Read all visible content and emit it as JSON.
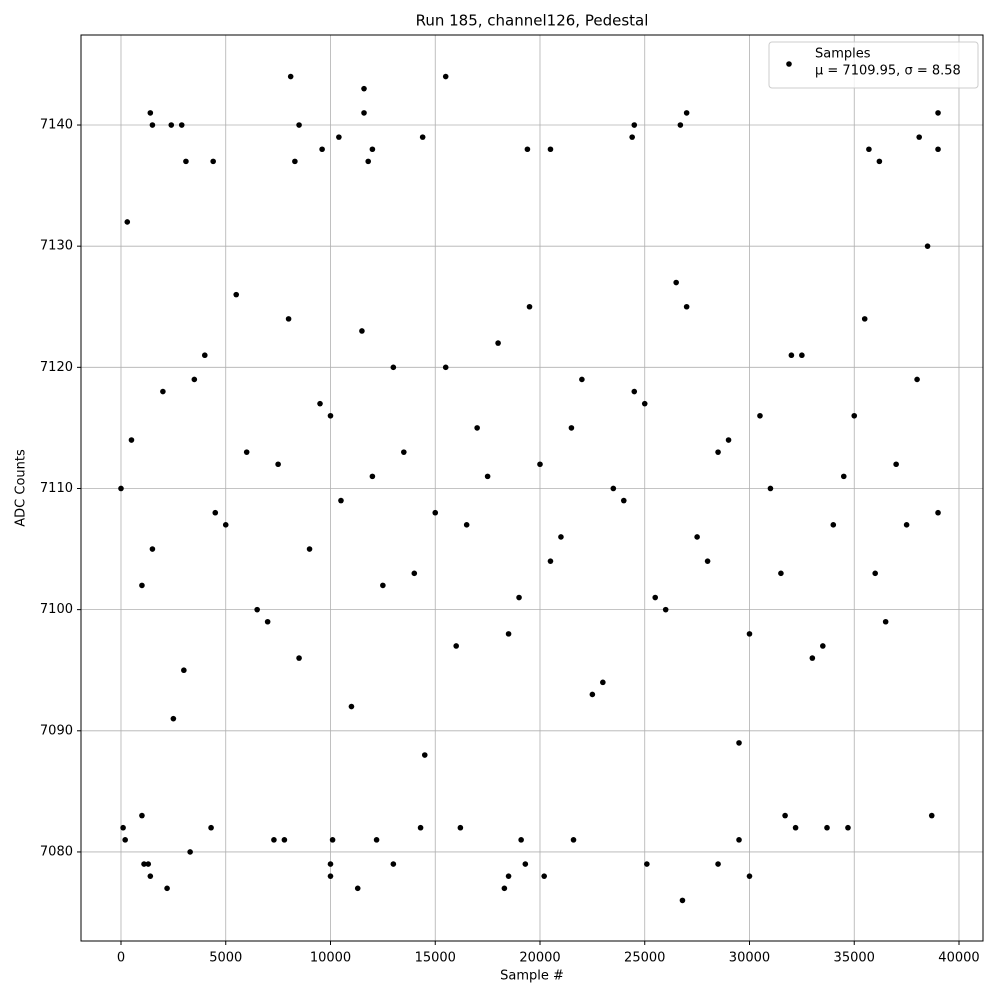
{
  "chart_data": {
    "type": "scatter",
    "title": "Run 185, channel126, Pedestal",
    "x_label": "Sample #",
    "y_label": "ADC Counts",
    "xlim": [
      -1909,
      41146
    ],
    "ylim": [
      7072.65,
      7147.43
    ],
    "xticks": [
      0,
      5000,
      10000,
      15000,
      20000,
      25000,
      30000,
      35000,
      40000
    ],
    "yticks": [
      7080,
      7090,
      7100,
      7110,
      7120,
      7130,
      7140
    ],
    "grid": true,
    "legend": "upper right",
    "legend_note": "μ = 7109.95, σ = 8.58",
    "series": [
      {
        "name": "Samples",
        "color": "#000000",
        "x": [
          100,
          200,
          300,
          1000,
          1100,
          1300,
          1400,
          1400,
          1500,
          2200,
          2400,
          2900,
          3300,
          3100,
          4300,
          4400,
          7300,
          7800,
          8100,
          8300,
          8500,
          9600,
          10000,
          10000,
          10100,
          10400,
          11300,
          11600,
          11600,
          11800,
          12000,
          12200,
          13000,
          14400,
          14300,
          15500,
          16200,
          18300,
          18500,
          19100,
          19300,
          19400,
          20200,
          20500,
          21600,
          24400,
          24500,
          25100,
          26700,
          26800,
          27000,
          28500,
          29500,
          30000,
          31700,
          32200,
          33700,
          34700,
          35700,
          36200,
          38100,
          38700,
          39000,
          39000,
          0,
          1000,
          2000,
          3000,
          4000,
          5000,
          6000,
          7000,
          8000,
          9000,
          10000,
          11000,
          12000,
          13000,
          14000,
          15000,
          16000,
          17000,
          18000,
          19000,
          20000,
          21000,
          22000,
          23000,
          24000,
          25000,
          26000,
          27000,
          28000,
          29000,
          30000,
          31000,
          32000,
          33000,
          34000,
          35000,
          36000,
          37000,
          38000,
          39000,
          500,
          1500,
          2500,
          3500,
          4500,
          5500,
          6500,
          7500,
          8500,
          9500,
          10500,
          11500,
          12500,
          13500,
          14500,
          15500,
          16500,
          17500,
          18500,
          19500,
          20500,
          21500,
          22500,
          23500,
          24500,
          25500,
          26500,
          27500,
          28500,
          29500,
          30500,
          31500,
          32500,
          33500,
          34500,
          35500,
          36500,
          37500,
          38500
        ],
        "values": [
          7082,
          7081,
          7132,
          7083,
          7079,
          7079,
          7078,
          7141,
          7140,
          7077,
          7140,
          7140,
          7080,
          7137,
          7082,
          7137,
          7081,
          7081,
          7144,
          7137,
          7140,
          7138,
          7078,
          7079,
          7081,
          7139,
          7077,
          7143,
          7141,
          7137,
          7138,
          7081,
          7079,
          7139,
          7082,
          7144,
          7082,
          7077,
          7078,
          7081,
          7079,
          7138,
          7078,
          7138,
          7081,
          7139,
          7140,
          7079,
          7140,
          7076,
          7141,
          7079,
          7081,
          7078,
          7083,
          7082,
          7082,
          7082,
          7138,
          7137,
          7139,
          7083,
          7141,
          7138,
          7110,
          7102,
          7118,
          7095,
          7121,
          7107,
          7113,
          7099,
          7124,
          7105,
          7116,
          7092,
          7111,
          7120,
          7103,
          7108,
          7097,
          7115,
          7122,
          7101,
          7112,
          7106,
          7119,
          7094,
          7109,
          7117,
          7100,
          7125,
          7104,
          7114,
          7098,
          7110,
          7121,
          7096,
          7107,
          7116,
          7103,
          7112,
          7119,
          7108,
          7114,
          7105,
          7091,
          7119,
          7108,
          7126,
          7100,
          7112,
          7096,
          7117,
          7109,
          7123,
          7102,
          7113,
          7088,
          7120,
          7107,
          7111,
          7098,
          7125,
          7104,
          7115,
          7093,
          7110,
          7118,
          7101,
          7127,
          7106,
          7113,
          7089,
          7116,
          7103,
          7121,
          7097,
          7111,
          7124,
          7099,
          7107,
          7130
        ]
      }
    ]
  }
}
